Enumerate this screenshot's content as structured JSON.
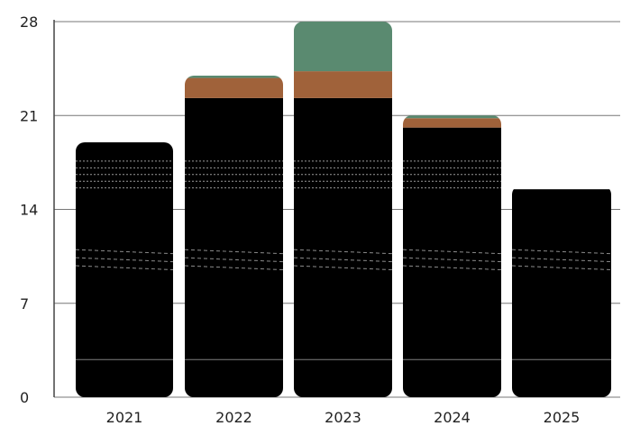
{
  "chart_data": {
    "type": "bar",
    "stacked": true,
    "title": "",
    "xlabel": "",
    "ylabel": "",
    "categories": [
      "2021",
      "2022",
      "2023",
      "2024",
      "2025"
    ],
    "ylim": [
      0,
      28
    ],
    "yticks": [
      0,
      7,
      14,
      21,
      28
    ],
    "grid": true,
    "legend": "none",
    "series": [
      {
        "values": [
          19.0,
          22.3,
          22.3,
          20.1,
          15.5
        ],
        "color": "#000000"
      },
      {
        "values": [
          0.0,
          1.5,
          2.0,
          0.7,
          0.0
        ],
        "color": "#a0623a"
      },
      {
        "values": [
          0.0,
          0.2,
          3.7,
          0.2,
          0.0
        ],
        "color": "#5a8a70"
      }
    ]
  }
}
